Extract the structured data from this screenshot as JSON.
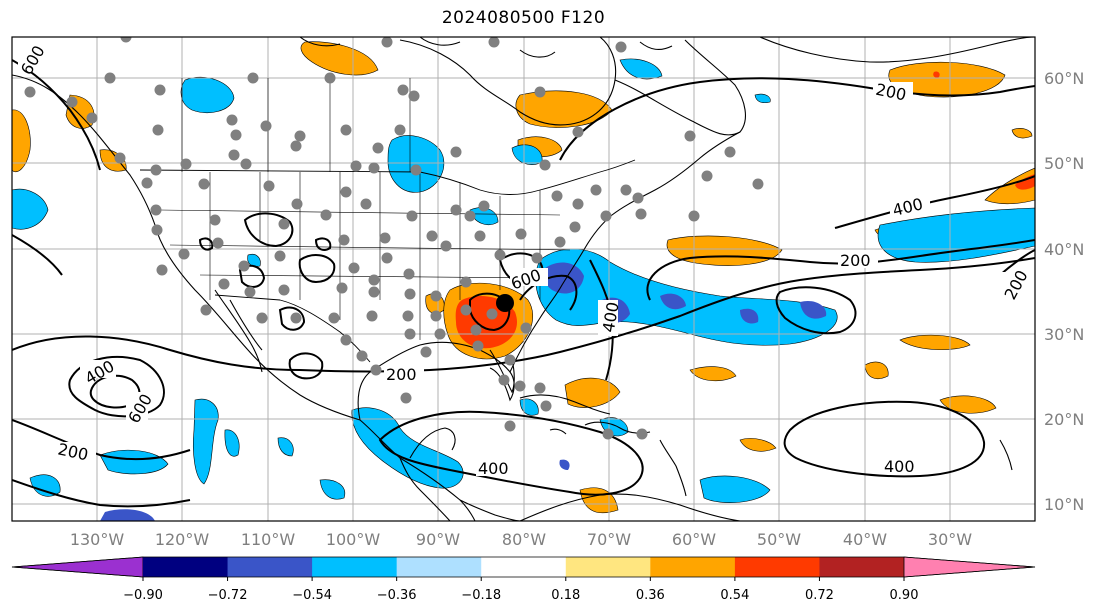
{
  "title": "2024080500 F120",
  "longitude_labels": [
    "130°W",
    "120°W",
    "110°W",
    "100°W",
    "90°W",
    "80°W",
    "70°W",
    "60°W",
    "50°W",
    "40°W",
    "30°W"
  ],
  "latitude_labels": [
    "60°N",
    "50°N",
    "40°N",
    "30°N",
    "20°N",
    "10°N"
  ],
  "contour_labels": {
    "c200_a": "200",
    "c200_b": "200",
    "c200_c": "200",
    "c200_d": "200",
    "c200_e": "200",
    "c400_a": "400",
    "c400_b": "400",
    "c400_c": "400",
    "c400_d": "400",
    "c400_e": "400",
    "c600_a": "600",
    "c600_b": "600",
    "c600_c": "600"
  },
  "colorbar": {
    "ticks": [
      "−0.90",
      "−0.72",
      "−0.54",
      "−0.36",
      "−0.18",
      "0.18",
      "0.36",
      "0.54",
      "0.72",
      "0.90"
    ],
    "colors": [
      "#9b30d0",
      "#000080",
      "#3a55c8",
      "#00bfff",
      "#aee0ff",
      "#ffffff",
      "#ffe680",
      "#ffa500",
      "#ff3a00",
      "#b22222",
      "#ff80b0"
    ]
  },
  "colors": {
    "neg_light": "#aee0ff",
    "neg_mid": "#00bfff",
    "neg_strong": "#3a55c8",
    "pos_light": "#ffe680",
    "pos_mid": "#ffa500",
    "pos_strong": "#ff3a00",
    "station": "#808080",
    "grid": "#b0b0b0"
  }
}
